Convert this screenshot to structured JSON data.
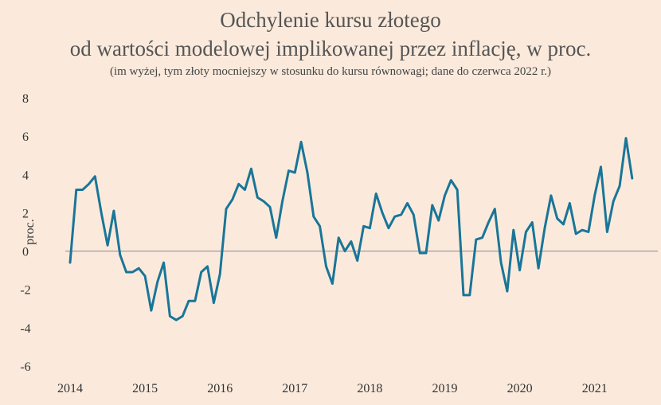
{
  "chart_data": {
    "type": "line",
    "title_line1": "Odchylenie kursu złotego",
    "title_line2": "od wartości modelowej implikowanej przez inflację, w proc.",
    "subtitle": "(im wyżej, tym złoty mocniejszy w stosunku do kursu równowagi; dane do czerwca 2022 r.)",
    "xlabel": "",
    "ylabel": "proc.",
    "ylim": [
      -6,
      8
    ],
    "xlim": [
      2014.0,
      2021.8
    ],
    "y_ticks": [
      "8",
      "6",
      "4",
      "2",
      "0",
      "-2",
      "-4",
      "-6"
    ],
    "x_ticks": [
      "2014",
      "2015",
      "2016",
      "2017",
      "2018",
      "2019",
      "2020",
      "2021"
    ],
    "zero_line": true,
    "line_color": "#1a7598",
    "zero_line_color": "#8a8a8a",
    "series": [
      {
        "x": [
          2014.0,
          2014.083,
          2014.167,
          2014.25,
          2014.333,
          2014.417,
          2014.5,
          2014.583,
          2014.667,
          2014.75,
          2014.833,
          2014.917,
          2015.0,
          2015.083,
          2015.167,
          2015.25,
          2015.333,
          2015.417,
          2015.5,
          2015.583,
          2015.667,
          2015.75,
          2015.833,
          2015.917,
          2016.0,
          2016.083,
          2016.167,
          2016.25,
          2016.333,
          2016.417,
          2016.5,
          2016.583,
          2016.667,
          2016.75,
          2016.833,
          2016.917,
          2017.0,
          2017.083,
          2017.167,
          2017.25,
          2017.333,
          2017.417,
          2017.5,
          2017.583,
          2017.667,
          2017.75,
          2017.833,
          2017.917,
          2018.0,
          2018.083,
          2018.167,
          2018.25,
          2018.333,
          2018.417,
          2018.5,
          2018.583,
          2018.667,
          2018.75,
          2018.833,
          2018.917,
          2019.0,
          2019.083,
          2019.167,
          2019.25,
          2019.333,
          2019.417,
          2019.5,
          2019.583,
          2019.667,
          2019.75,
          2019.833,
          2019.917,
          2020.0,
          2020.083,
          2020.167,
          2020.25,
          2020.333,
          2020.417,
          2020.5,
          2020.583,
          2020.667,
          2020.75,
          2020.833,
          2020.917,
          2021.0,
          2021.083,
          2021.167,
          2021.25,
          2021.333,
          2021.417,
          2021.5
        ],
        "y": [
          -0.6,
          3.2,
          3.2,
          3.5,
          3.9,
          2.0,
          0.3,
          2.1,
          -0.2,
          -1.1,
          -1.1,
          -0.9,
          -1.3,
          -3.1,
          -1.6,
          -0.6,
          -3.4,
          -3.6,
          -3.4,
          -2.6,
          -2.6,
          -1.1,
          -0.8,
          -2.7,
          -1.2,
          2.2,
          2.7,
          3.5,
          3.2,
          4.3,
          2.8,
          2.6,
          2.3,
          0.7,
          2.6,
          4.2,
          4.1,
          5.7,
          4.1,
          1.8,
          1.3,
          -0.8,
          -1.7,
          0.7,
          0.0,
          0.5,
          -0.5,
          1.3,
          1.2,
          3.0,
          2.0,
          1.2,
          1.8,
          1.9,
          2.5,
          1.9,
          -0.1,
          -0.1,
          2.4,
          1.6,
          2.9,
          3.7,
          3.2,
          -2.3,
          -2.3,
          0.6,
          0.7,
          1.5,
          2.2,
          -0.6,
          -2.1,
          1.1,
          -1.0,
          1.0,
          1.5,
          -0.9,
          1.2,
          2.9,
          1.7,
          1.4,
          2.5,
          0.9,
          1.1,
          1.0,
          2.9,
          4.4,
          1.0,
          2.6,
          3.4,
          5.9,
          3.8
        ]
      }
    ]
  }
}
